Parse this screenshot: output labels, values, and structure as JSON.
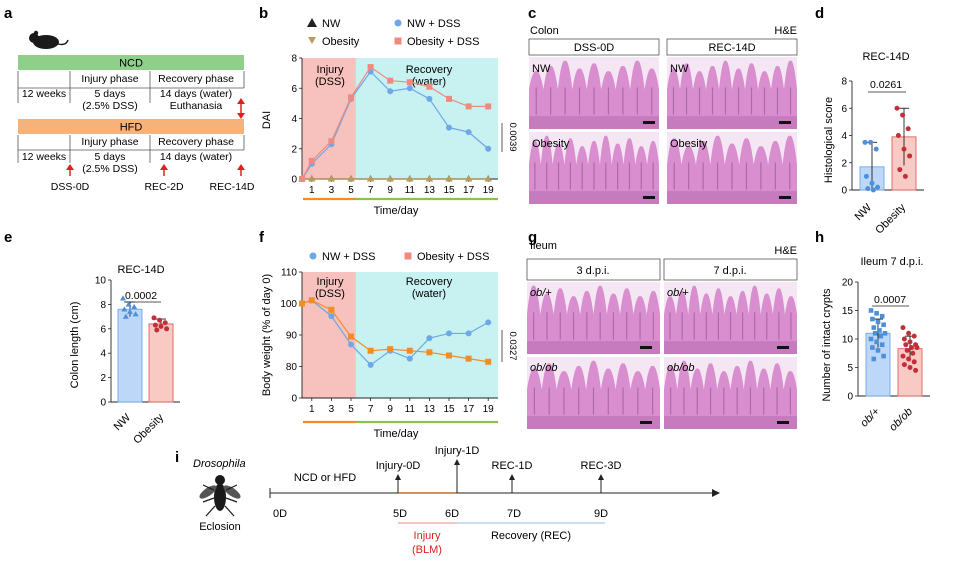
{
  "colors": {
    "ncd": "#8ecf8a",
    "hfd": "#f7b27a",
    "injury_bg": "#f7c2bd",
    "recovery_bg": "#c8f1f2",
    "nw": "#6fa8e6",
    "obesity": "#e06060",
    "orange": "#f28c28",
    "green": "#8cc152",
    "red": "#e02020",
    "he_pink": "#d98fcf",
    "he_bg": "#f4e6f2",
    "he_dark": "#8a4b8f"
  },
  "panel_a": {
    "letter": "a",
    "ncd": "NCD",
    "hfd": "HFD",
    "weeks": "12 weeks",
    "injury_phase": "Injury phase",
    "recovery_phase": "Recovery phase",
    "injury_days": "5 days",
    "injury_dss": "(2.5% DSS)",
    "recovery_days": "14 days (water)",
    "euthanasia": "Euthanasia",
    "timepoints": [
      "DSS-0D",
      "REC-2D",
      "REC-14D"
    ]
  },
  "panel_b": {
    "letter": "b",
    "ylabel": "DAI",
    "xlabel": "Time/day",
    "injury_label": "Injury",
    "injury_sub": "(DSS)",
    "recovery_label": "Recovery",
    "recovery_sub": "(water)",
    "pvalue": "0.0039",
    "legend": [
      "NW",
      "NW + DSS",
      "Obesity",
      "Obesity + DSS"
    ],
    "y_ticks": [
      "0",
      "2",
      "4",
      "6",
      "8"
    ],
    "x_ticks": [
      "1",
      "3",
      "5",
      "7",
      "9",
      "11",
      "13",
      "15",
      "17",
      "19"
    ]
  },
  "panel_c": {
    "letter": "c",
    "tissue": "Colon",
    "stain": "H&E",
    "col_headers": [
      "DSS-0D",
      "REC-14D"
    ],
    "row_labels": [
      "NW",
      "Obesity"
    ]
  },
  "panel_d": {
    "letter": "d",
    "title": "REC-14D",
    "ylabel": "Histological score",
    "pvalue": "0.0261",
    "categories": [
      "NW",
      "Obesity"
    ],
    "y_ticks": [
      "0",
      "2",
      "4",
      "6",
      "8"
    ]
  },
  "panel_e": {
    "letter": "e",
    "title": "REC-14D",
    "ylabel": "Colon length (cm)",
    "pvalue": "0.0002",
    "categories": [
      "NW",
      "Obesity"
    ],
    "y_ticks": [
      "0",
      "2",
      "4",
      "6",
      "8",
      "10"
    ]
  },
  "panel_f": {
    "letter": "f",
    "ylabel": "Body weight (% of day 0)",
    "xlabel": "Time/day",
    "injury_label": "Injury",
    "injury_sub": "(DSS)",
    "recovery_label": "Recovery",
    "recovery_sub": "(water)",
    "pvalue": "0.0327",
    "legend": [
      "NW + DSS",
      "Obesity + DSS"
    ],
    "y_ticks": [
      "0",
      "80",
      "90",
      "100",
      "110"
    ],
    "x_ticks": [
      "1",
      "3",
      "5",
      "7",
      "9",
      "11",
      "13",
      "15",
      "17",
      "19"
    ]
  },
  "panel_g": {
    "letter": "g",
    "tissue": "Ileum",
    "stain": "H&E",
    "col_headers": [
      "3 d.p.i.",
      "7 d.p.i."
    ],
    "row_labels": [
      "ob/+",
      "ob/ob"
    ]
  },
  "panel_h": {
    "letter": "h",
    "title": "Ileum 7 d.p.i.",
    "ylabel": "Number of intact crypts",
    "pvalue": "0.0007",
    "categories": [
      "ob/+",
      "ob/ob"
    ],
    "y_ticks": [
      "0",
      "5",
      "10",
      "15",
      "20"
    ]
  },
  "panel_i": {
    "letter": "i",
    "organism": "Drosophila",
    "eclosion": "Eclosion",
    "diet": "NCD or HFD",
    "events": [
      "Injury-0D",
      "Injury-1D",
      "REC-1D",
      "REC-3D"
    ],
    "days": [
      "0D",
      "5D",
      "6D",
      "7D",
      "9D"
    ],
    "injury": "Injury",
    "blm": "(BLM)",
    "recovery": "Recovery (REC)"
  },
  "chart_data": [
    {
      "panel": "b",
      "type": "line",
      "x": [
        0,
        1,
        3,
        5,
        7,
        9,
        11,
        13,
        15,
        17,
        19
      ],
      "series": [
        {
          "name": "NW",
          "values": [
            0,
            0,
            0,
            0,
            0,
            0,
            0,
            0,
            0,
            0,
            0
          ]
        },
        {
          "name": "NW + DSS",
          "values": [
            0,
            1.0,
            2.3,
            5.3,
            7.1,
            5.8,
            6.0,
            5.3,
            3.4,
            3.1,
            2.0
          ]
        },
        {
          "name": "Obesity",
          "values": [
            0,
            0,
            0,
            0,
            0,
            0,
            0,
            0,
            0,
            0,
            0
          ]
        },
        {
          "name": "Obesity + DSS",
          "values": [
            0,
            1.2,
            2.5,
            5.4,
            7.4,
            6.5,
            6.4,
            6.1,
            5.3,
            4.8,
            4.8
          ]
        }
      ],
      "xlabel": "Time/day",
      "ylabel": "DAI",
      "ylim": [
        0,
        8
      ]
    },
    {
      "panel": "d",
      "type": "bar",
      "categories": [
        "NW",
        "Obesity"
      ],
      "values": [
        1.7,
        3.9
      ],
      "errors": [
        1.8,
        2.1
      ],
      "points": [
        [
          3.5,
          3.5,
          3.0,
          1.0,
          0.5,
          0.2,
          0.1,
          0
        ],
        [
          6.0,
          5.5,
          4.5,
          4.0,
          3.0,
          2.5,
          1.5,
          1.0
        ]
      ],
      "ylabel": "Histological score",
      "ylim": [
        0,
        8
      ]
    },
    {
      "panel": "e",
      "type": "bar",
      "categories": [
        "NW",
        "Obesity"
      ],
      "values": [
        7.6,
        6.4
      ],
      "errors": [
        0.6,
        0.4
      ],
      "points": [
        [
          8.5,
          8.0,
          7.8,
          7.6,
          7.4,
          7.2,
          7.0
        ],
        [
          6.9,
          6.7,
          6.5,
          6.3,
          6.2,
          6.0,
          5.9
        ]
      ],
      "ylabel": "Colon length (cm)",
      "ylim": [
        0,
        10
      ]
    },
    {
      "panel": "f",
      "type": "line",
      "x": [
        0,
        1,
        3,
        5,
        7,
        9,
        11,
        13,
        15,
        17,
        19
      ],
      "series": [
        {
          "name": "NW + DSS",
          "values": [
            100,
            101,
            96,
            87,
            80.5,
            85,
            82.5,
            89,
            90.5,
            90.5,
            94
          ]
        },
        {
          "name": "Obesity + DSS",
          "values": [
            100,
            101,
            98,
            89.5,
            85,
            85.5,
            85,
            84.5,
            83.5,
            82.5,
            81.5
          ]
        }
      ],
      "xlabel": "Time/day",
      "ylabel": "Body weight (% of day 0)",
      "ylim": [
        70,
        110
      ]
    },
    {
      "panel": "h",
      "type": "bar",
      "categories": [
        "ob/+",
        "ob/ob"
      ],
      "values": [
        11.0,
        8.3
      ],
      "errors": [
        2.5,
        2.2
      ],
      "points": [
        [
          15,
          14.5,
          14,
          13.5,
          13,
          12.5,
          12,
          11.5,
          11,
          11,
          10.5,
          10,
          9.5,
          9,
          8.5,
          8,
          7,
          6.5
        ],
        [
          12,
          11,
          10.5,
          10,
          9.5,
          9,
          9,
          8.5,
          8.5,
          8,
          7.5,
          7,
          6.5,
          6,
          5.5,
          5,
          4.5
        ]
      ],
      "ylabel": "Number of intact crypts",
      "ylim": [
        0,
        20
      ]
    }
  ]
}
